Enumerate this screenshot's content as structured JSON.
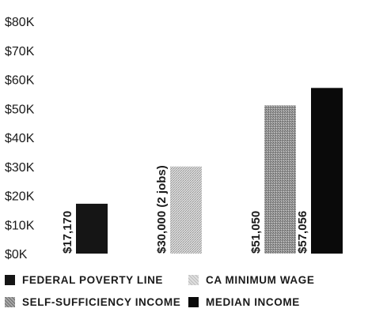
{
  "chart_data": {
    "type": "bar",
    "categories": [
      "Federal Poverty Line",
      "CA Minimum Wage",
      "Self-Sufficiency Income",
      "Median Income"
    ],
    "values": [
      17170,
      30000,
      51050,
      57056
    ],
    "data_labels": [
      "$17,170",
      "$30,000 (2 jobs)",
      "$51,050",
      "$57,056"
    ],
    "ylim": [
      0,
      80000
    ],
    "y_ticks": [
      0,
      10000,
      20000,
      30000,
      40000,
      50000,
      60000,
      70000,
      80000
    ],
    "y_tick_labels": [
      "$0K",
      "$10K",
      "$20K",
      "$30K",
      "$40K",
      "$50K",
      "$60K",
      "$70K",
      "$80K"
    ],
    "grid": false,
    "legend_position": "bottom",
    "legend": [
      [
        "FEDERAL POVERTY LINE",
        "CA MINIMUM WAGE"
      ],
      [
        "SELF-SUFFICIENCY INCOME",
        "MEDIAN INCOME"
      ]
    ],
    "colors": [
      "#151515",
      "#c4c4c4",
      "#8a8a8a",
      "#0a0a0a"
    ]
  }
}
